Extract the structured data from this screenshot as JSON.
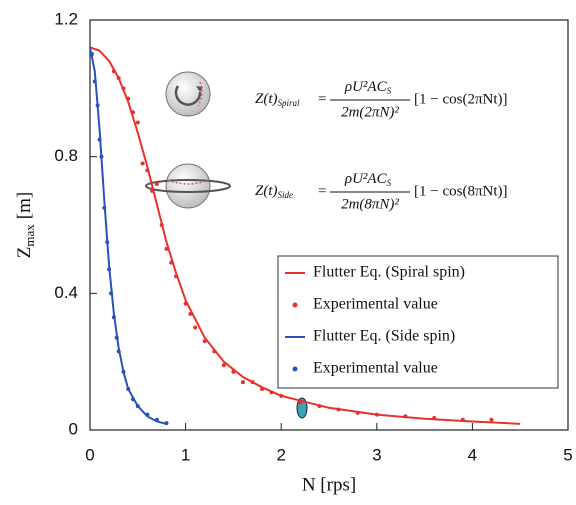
{
  "chart_data": {
    "type": "line",
    "x_label": "N [rps]",
    "y_label": {
      "main": "Z",
      "sub": "max",
      "unit": "[m]"
    },
    "xlim": [
      0,
      5
    ],
    "ylim": [
      0,
      1.2
    ],
    "xticks": [
      0,
      1,
      2,
      3,
      4,
      5
    ],
    "yticks": [
      0,
      0.4,
      0.8,
      1.2
    ],
    "grid": false,
    "legend": "lower right",
    "annotations": [
      {
        "lhs": "Z(t)",
        "lhs_sub": "Spiral",
        "eq": "=",
        "num": "ρU²AC",
        "num_sub": "S",
        "den": "2m(2πN)²",
        "bracket": "[1 − cos(2πNt)]"
      },
      {
        "lhs": "Z(t)",
        "lhs_sub": "Side",
        "eq": "=",
        "num": "ρU²AC",
        "num_sub": "S",
        "den": "2m(8πN)²",
        "bracket": "[1 − cos(8πNt)]"
      }
    ],
    "series": [
      {
        "name": "Flutter Eq. (Spiral spin)",
        "type": "line",
        "color": "#e8312f",
        "x": [
          0,
          0.1,
          0.2,
          0.3,
          0.4,
          0.5,
          0.6,
          0.7,
          0.8,
          0.9,
          1.0,
          1.2,
          1.4,
          1.6,
          1.8,
          2.0,
          2.5,
          3.0,
          3.5,
          4.0,
          4.5
        ],
        "values": [
          1.12,
          1.11,
          1.08,
          1.03,
          0.96,
          0.87,
          0.77,
          0.66,
          0.55,
          0.46,
          0.38,
          0.27,
          0.2,
          0.155,
          0.125,
          0.1,
          0.065,
          0.045,
          0.033,
          0.025,
          0.018
        ]
      },
      {
        "name": "Experimental value",
        "type": "scatter",
        "color": "#e8312f",
        "x": [
          0.25,
          0.3,
          0.35,
          0.4,
          0.45,
          0.5,
          0.55,
          0.6,
          0.65,
          0.7,
          0.75,
          0.8,
          0.85,
          0.9,
          1.0,
          1.05,
          1.1,
          1.2,
          1.3,
          1.4,
          1.5,
          1.6,
          1.7,
          1.8,
          1.9,
          2.0,
          2.2,
          2.4,
          2.6,
          2.8,
          3.0,
          3.3,
          3.6,
          3.9,
          4.2
        ],
        "values": [
          1.05,
          1.03,
          1.0,
          0.97,
          0.93,
          0.9,
          0.78,
          0.76,
          0.7,
          0.72,
          0.6,
          0.53,
          0.49,
          0.45,
          0.37,
          0.34,
          0.3,
          0.26,
          0.23,
          0.19,
          0.17,
          0.14,
          0.14,
          0.12,
          0.11,
          0.1,
          0.08,
          0.07,
          0.06,
          0.05,
          0.045,
          0.04,
          0.035,
          0.03,
          0.03
        ]
      },
      {
        "name": "Flutter Eq. (Side spin)",
        "type": "line",
        "color": "#2a52b4",
        "x": [
          0,
          0.05,
          0.1,
          0.15,
          0.2,
          0.25,
          0.3,
          0.35,
          0.4,
          0.5,
          0.6,
          0.7,
          0.8
        ],
        "values": [
          1.12,
          1.05,
          0.88,
          0.67,
          0.48,
          0.34,
          0.24,
          0.17,
          0.12,
          0.07,
          0.04,
          0.025,
          0.018
        ]
      },
      {
        "name": "Experimental value",
        "type": "scatter",
        "color": "#2a52b4",
        "x": [
          0.02,
          0.05,
          0.08,
          0.1,
          0.12,
          0.15,
          0.18,
          0.2,
          0.22,
          0.25,
          0.28,
          0.3,
          0.35,
          0.4,
          0.45,
          0.5,
          0.6,
          0.7,
          0.8
        ],
        "values": [
          1.1,
          1.02,
          0.95,
          0.85,
          0.8,
          0.65,
          0.55,
          0.47,
          0.4,
          0.33,
          0.27,
          0.23,
          0.17,
          0.12,
          0.09,
          0.07,
          0.045,
          0.03,
          0.02
        ]
      }
    ]
  }
}
